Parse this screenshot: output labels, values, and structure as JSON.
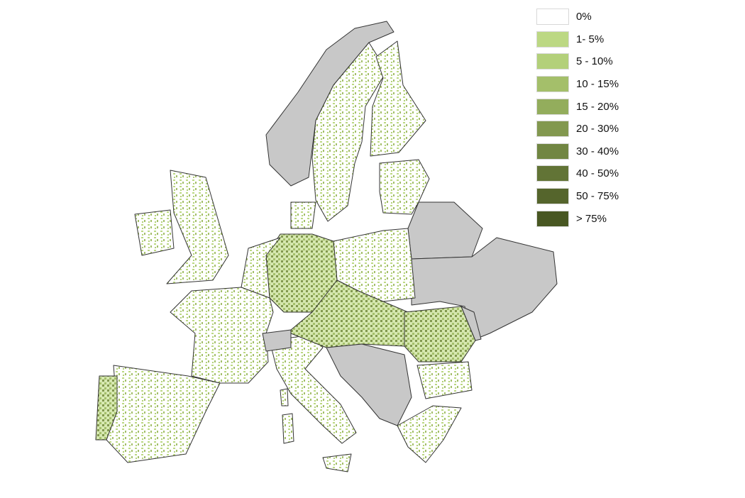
{
  "legend": [
    {
      "label": "0%",
      "color": "#ffffff"
    },
    {
      "label": "1- 5%",
      "color": "#bcd883"
    },
    {
      "label": "5 - 10%",
      "color": "#b3d07a"
    },
    {
      "label": "10 - 15%",
      "color": "#a4bf6a"
    },
    {
      "label": "15 - 20%",
      "color": "#93ad5c"
    },
    {
      "label": "20 - 30%",
      "color": "#82984f"
    },
    {
      "label": "30 - 40%",
      "color": "#718642"
    },
    {
      "label": "40 - 50%",
      "color": "#627436"
    },
    {
      "label": "50 - 75%",
      "color": "#55652c"
    },
    {
      "label": "> 75%",
      "color": "#485722"
    }
  ],
  "colors": {
    "no_data_country": "#c8c8c8",
    "border": "#333333"
  }
}
